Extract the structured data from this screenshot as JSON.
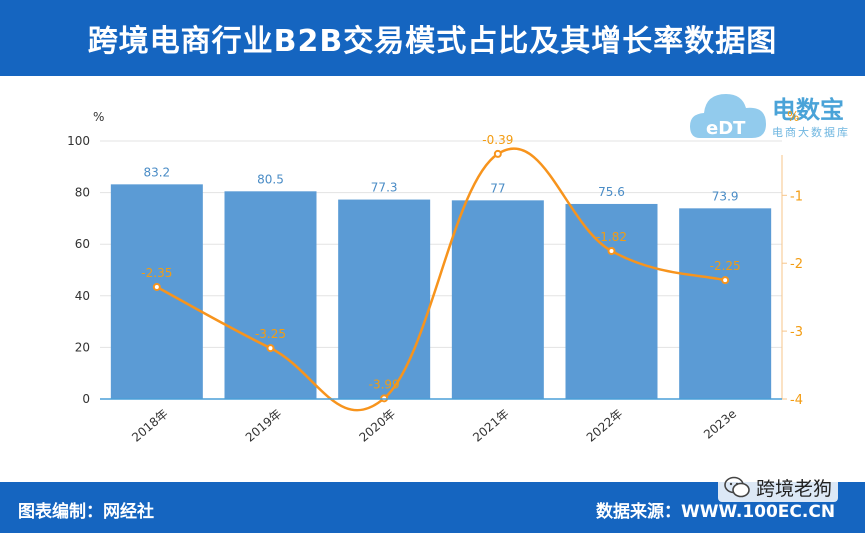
{
  "header": {
    "title": "跨境电商行业B2B交易模式占比及其增长率数据图"
  },
  "footer": {
    "credit": "图表编制：网经社",
    "source": "数据来源：WWW.100EC.CN"
  },
  "watermark": {
    "brand": "跨境老狗",
    "icon": "wechat-icon"
  },
  "logo": {
    "text": "电数宝",
    "sub": "电商大数据库",
    "badge": "eDT"
  },
  "colors": {
    "header": "#1565c0",
    "bar": "#5b9bd5",
    "line": "#f7941d"
  },
  "chart_data": {
    "type": "bar",
    "categories": [
      "2018年",
      "2019年",
      "2020年",
      "2021年",
      "2022年",
      "2023e"
    ],
    "left_axis_unit": "%",
    "right_axis_unit": "%",
    "ylim": [
      0,
      100
    ],
    "yticks": [
      0,
      20,
      40,
      60,
      80,
      100
    ],
    "y2lim": [
      -4,
      -0.2
    ],
    "y2ticks": [
      -1,
      -2,
      -3,
      -4
    ],
    "series": [
      {
        "type": "bar",
        "axis": "left",
        "values": [
          83.2,
          80.5,
          77.3,
          77,
          75.6,
          73.9
        ]
      },
      {
        "type": "line",
        "axis": "right",
        "values": [
          -2.35,
          -3.25,
          -3.99,
          -0.39,
          -1.82,
          -2.25
        ]
      }
    ],
    "grid": true,
    "legend": "none"
  }
}
